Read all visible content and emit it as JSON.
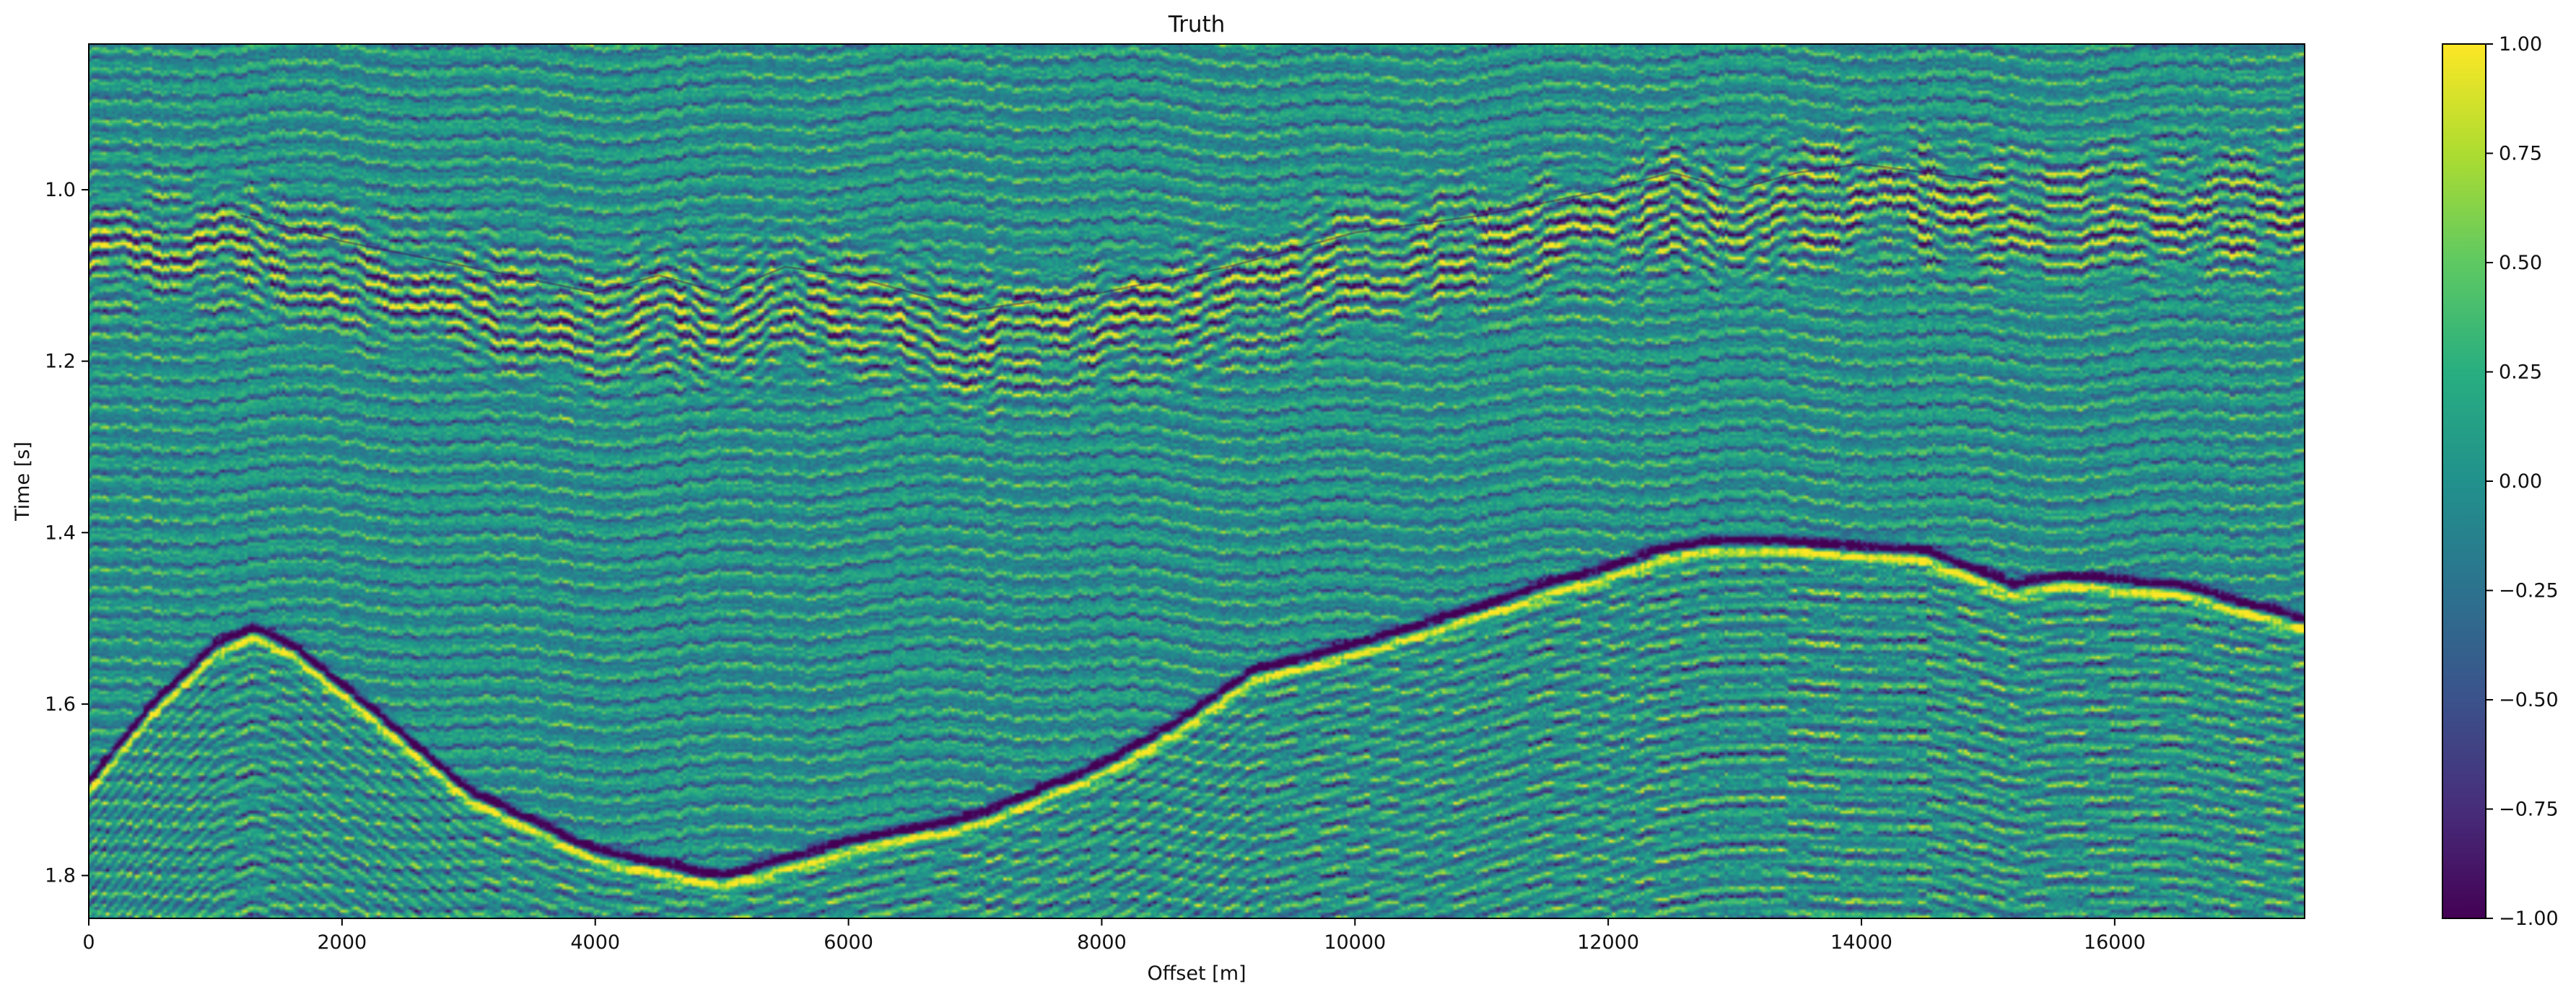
{
  "chart_data": {
    "type": "heatmap",
    "title": "Truth",
    "xlabel": "Offset [m]",
    "ylabel": "Time [s]",
    "xlim": [
      0,
      17500
    ],
    "ylim": [
      1.85,
      0.83
    ],
    "y_inverted": true,
    "grid": false,
    "colormap": "viridis",
    "x_ticks": [
      {
        "value": 0,
        "label": "0"
      },
      {
        "value": 2000,
        "label": "2000"
      },
      {
        "value": 4000,
        "label": "4000"
      },
      {
        "value": 6000,
        "label": "6000"
      },
      {
        "value": 8000,
        "label": "8000"
      },
      {
        "value": 10000,
        "label": "10000"
      },
      {
        "value": 12000,
        "label": "12000"
      },
      {
        "value": 14000,
        "label": "14000"
      },
      {
        "value": 16000,
        "label": "16000"
      }
    ],
    "y_ticks": [
      {
        "value": 1.0,
        "label": "1.0"
      },
      {
        "value": 1.2,
        "label": "1.2"
      },
      {
        "value": 1.4,
        "label": "1.4"
      },
      {
        "value": 1.6,
        "label": "1.6"
      },
      {
        "value": 1.8,
        "label": "1.8"
      }
    ],
    "colorbar": {
      "vmin": -1.0,
      "vmax": 1.0,
      "ticks": [
        {
          "value": 1.0,
          "label": "1.00"
        },
        {
          "value": 0.75,
          "label": "0.75"
        },
        {
          "value": 0.5,
          "label": "0.50"
        },
        {
          "value": 0.25,
          "label": "0.25"
        },
        {
          "value": 0.0,
          "label": "0.00"
        },
        {
          "value": -0.25,
          "label": "−0.25"
        },
        {
          "value": -0.5,
          "label": "−0.50"
        },
        {
          "value": -0.75,
          "label": "−0.75"
        },
        {
          "value": -1.0,
          "label": "−1.00"
        }
      ]
    },
    "reflectors": [
      {
        "name": "",
        "points": [
          [
            0,
            1.69
          ],
          [
            500,
            1.6
          ],
          [
            1000,
            1.53
          ],
          [
            1300,
            1.51
          ],
          [
            1600,
            1.53
          ],
          [
            2200,
            1.6
          ],
          [
            3000,
            1.7
          ],
          [
            4000,
            1.77
          ],
          [
            5000,
            1.8
          ],
          [
            6000,
            1.76
          ],
          [
            7000,
            1.73
          ],
          [
            8000,
            1.67
          ],
          [
            8600,
            1.62
          ],
          [
            9200,
            1.56
          ],
          [
            10000,
            1.53
          ],
          [
            10900,
            1.49
          ],
          [
            11500,
            1.46
          ],
          [
            12000,
            1.44
          ],
          [
            12400,
            1.42
          ],
          [
            12800,
            1.41
          ],
          [
            13500,
            1.41
          ],
          [
            14500,
            1.42
          ],
          [
            15200,
            1.46
          ],
          [
            15600,
            1.45
          ],
          [
            16500,
            1.46
          ],
          [
            17500,
            1.5
          ]
        ]
      },
      {
        "name": "",
        "points": [
          [
            1200,
            1.03
          ],
          [
            2000,
            1.06
          ],
          [
            3000,
            1.09
          ],
          [
            4000,
            1.12
          ],
          [
            4500,
            1.1
          ],
          [
            5000,
            1.12
          ],
          [
            5500,
            1.09
          ],
          [
            6000,
            1.1
          ],
          [
            6500,
            1.12
          ],
          [
            7000,
            1.14
          ],
          [
            8000,
            1.12
          ],
          [
            9000,
            1.09
          ],
          [
            10000,
            1.05
          ],
          [
            11000,
            1.03
          ],
          [
            12000,
            1.0
          ],
          [
            12500,
            0.98
          ],
          [
            13000,
            1.0
          ],
          [
            13500,
            0.98
          ],
          [
            14000,
            0.97
          ],
          [
            15000,
            0.99
          ]
        ]
      }
    ]
  }
}
